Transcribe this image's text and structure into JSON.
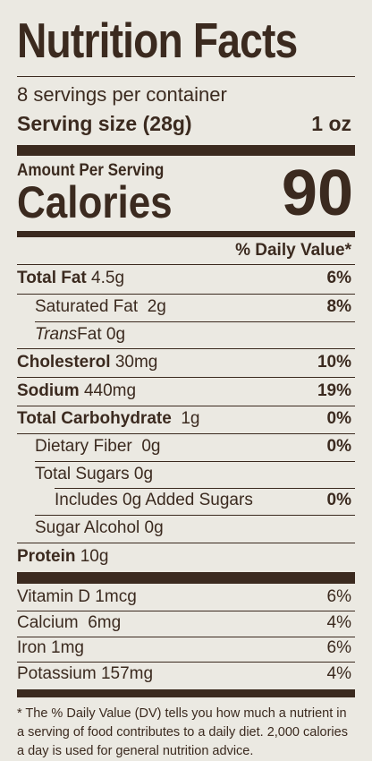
{
  "title": "Nutrition Facts",
  "servings_per_container": "8 servings per container",
  "serving_size_label": "Serving size (28g)",
  "serving_size_value": "1 oz",
  "amount_per_serving": "Amount Per Serving",
  "calories_label": "Calories",
  "calories_value": "90",
  "daily_value_header": "% Daily Value*",
  "nutrients": {
    "total_fat": {
      "label": "Total Fat",
      "amount": "4.5g",
      "dv": "6%"
    },
    "saturated_fat": {
      "label": "Saturated Fat",
      "amount": "2g",
      "dv": "8%"
    },
    "trans_fat": {
      "label_italic": "Trans",
      "label": "Fat",
      "amount": "0g"
    },
    "cholesterol": {
      "label": "Cholesterol",
      "amount": "30mg",
      "dv": "10%"
    },
    "sodium": {
      "label": "Sodium",
      "amount": "440mg",
      "dv": "19%"
    },
    "total_carbohydrate": {
      "label": "Total Carbohydrate",
      "amount": "1g",
      "dv": "0%"
    },
    "dietary_fiber": {
      "label": "Dietary Fiber",
      "amount": "0g",
      "dv": "0%"
    },
    "total_sugars": {
      "label": "Total Sugars",
      "amount": "0g"
    },
    "added_sugars": {
      "label": "Includes 0g Added Sugars",
      "dv": "0%"
    },
    "sugar_alcohol": {
      "label": "Sugar Alcohol",
      "amount": "0g"
    },
    "protein": {
      "label": "Protein",
      "amount": "10g"
    }
  },
  "vitamins": {
    "vitamin_d": {
      "label": "Vitamin D",
      "amount": "1mcg",
      "dv": "6%"
    },
    "calcium": {
      "label": "Calcium",
      "amount": "6mg",
      "dv": "4%"
    },
    "iron": {
      "label": "Iron",
      "amount": "1mg",
      "dv": "6%"
    },
    "potassium": {
      "label": "Potassium",
      "amount": "157mg",
      "dv": "4%"
    }
  },
  "footnote": "* The % Daily Value (DV) tells you how much a nutrient in a serving of food contributes to a daily diet. 2,000 calories a day is used for general nutrition advice.",
  "colors": {
    "text": "#3b2a1f",
    "background": "#ebe9e2"
  }
}
